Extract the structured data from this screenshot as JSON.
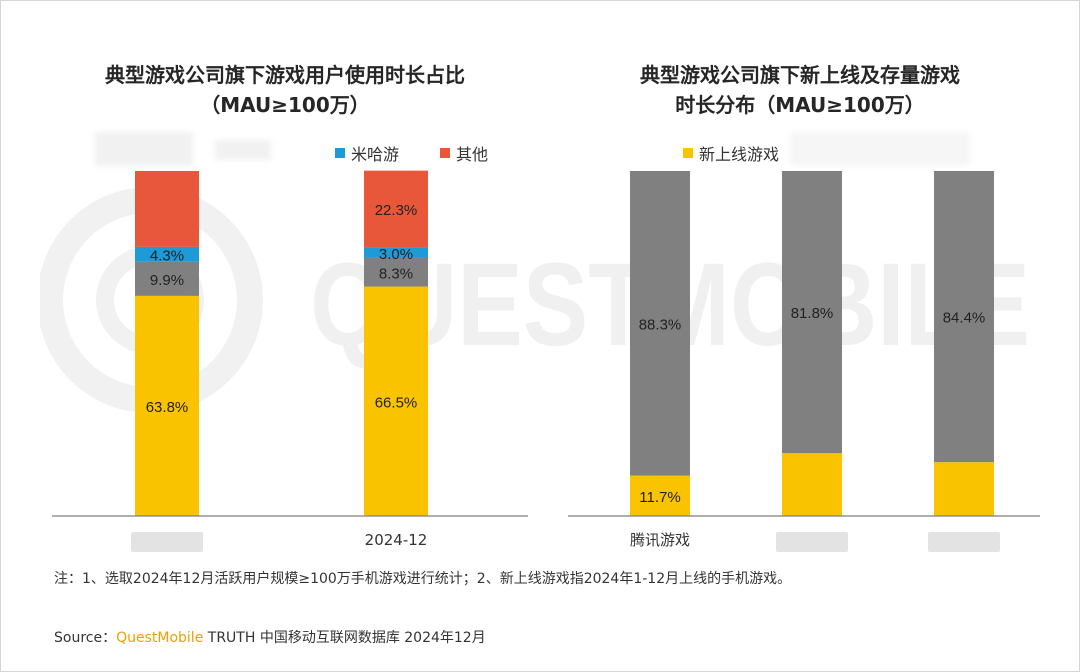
{
  "colors": {
    "yellow": "#F9C300",
    "gray": "#808080",
    "blue": "#1E9AD6",
    "red": "#E8573A",
    "brand": "#F0A000"
  },
  "watermark_text": "QUESTMOBILE",
  "left_legend": {
    "item1": "米哈游",
    "item2": "其他"
  },
  "right_legend": {
    "item1": "新上线游戏"
  },
  "chart_data": [
    {
      "type": "bar",
      "stacked": true,
      "title": "典型游戏公司旗下游戏用户使用时长占比",
      "subtitle": "（MAU≥100万）",
      "categories": [
        "",
        "2024-12"
      ],
      "series": [
        {
          "name": "",
          "color": "#F9C300",
          "values": [
            63.8,
            66.5
          ],
          "labels": [
            "63.8%",
            "66.5%"
          ]
        },
        {
          "name": "",
          "color": "#808080",
          "values": [
            9.9,
            8.3
          ],
          "labels": [
            "9.9%",
            "8.3%"
          ]
        },
        {
          "name": "米哈游",
          "color": "#1E9AD6",
          "values": [
            4.3,
            3.0
          ],
          "labels": [
            "4.3%",
            "3.0%"
          ]
        },
        {
          "name": "其他",
          "color": "#E8573A",
          "values": [
            22.0,
            22.3
          ],
          "labels": [
            "",
            "22.3%"
          ]
        }
      ],
      "ylim": [
        0,
        100
      ]
    },
    {
      "type": "bar",
      "stacked": true,
      "title": "典型游戏公司旗下新上线及存量游戏",
      "subtitle": "时长分布（MAU≥100万）",
      "categories": [
        "腾讯游戏",
        "",
        ""
      ],
      "series": [
        {
          "name": "新上线游戏",
          "color": "#F9C300",
          "values": [
            11.7,
            18.2,
            15.6
          ],
          "labels": [
            "11.7%",
            "",
            ""
          ]
        },
        {
          "name": "",
          "color": "#808080",
          "values": [
            88.3,
            81.8,
            84.4
          ],
          "labels": [
            "88.3%",
            "81.8%",
            "84.4%"
          ]
        }
      ],
      "ylim": [
        0,
        100
      ]
    }
  ],
  "footer": {
    "note": "注：1、选取2024年12月活跃用户规模≥100万手机游戏进行统计；2、新上线游戏指2024年1-12月上线的手机游戏。",
    "source_prefix": "Source：",
    "source_brand": "QuestMobile",
    "source_rest": " TRUTH 中国移动互联网数据库 2024年12月"
  }
}
